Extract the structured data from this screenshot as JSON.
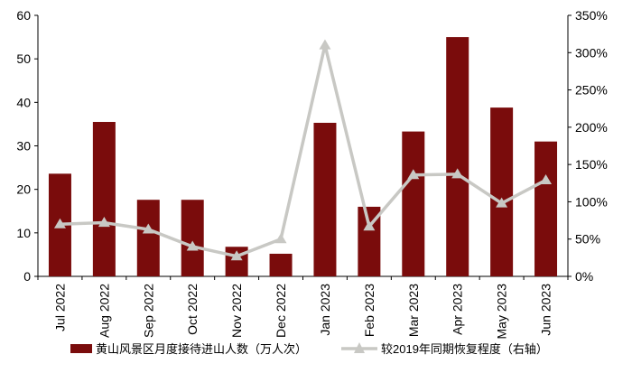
{
  "chart_data": {
    "type": "bar",
    "categories": [
      "Jul 2022",
      "Aug 2022",
      "Sep 2022",
      "Oct 2022",
      "Nov 2022",
      "Dec 2022",
      "Jan 2023",
      "Feb 2023",
      "Mar 2023",
      "Apr 2023",
      "May 2023",
      "Jun 2023"
    ],
    "series": [
      {
        "name": "黄山风景区月度接待进山人数（万人次）",
        "type": "bar",
        "axis": "left",
        "color": "#7a0c0c",
        "values": [
          23.6,
          35.5,
          17.6,
          17.6,
          6.8,
          5.2,
          35.3,
          16.0,
          33.3,
          55.0,
          38.8,
          31.0
        ]
      },
      {
        "name": "较2019年同期恢复程度（右轴）",
        "type": "line",
        "axis": "right",
        "color": "#c8c8c4",
        "values": [
          70,
          72,
          63,
          40,
          27,
          50,
          310,
          67,
          136,
          137,
          98,
          129
        ]
      }
    ],
    "y_left": {
      "ylim": [
        0,
        60
      ],
      "ticks": [
        "0",
        "10",
        "20",
        "30",
        "40",
        "50",
        "60"
      ]
    },
    "y_right": {
      "ylim": [
        0,
        350
      ],
      "ticks": [
        "0%",
        "50%",
        "100%",
        "150%",
        "200%",
        "250%",
        "300%",
        "350%"
      ]
    },
    "legend_position": "bottom",
    "grid": false
  }
}
